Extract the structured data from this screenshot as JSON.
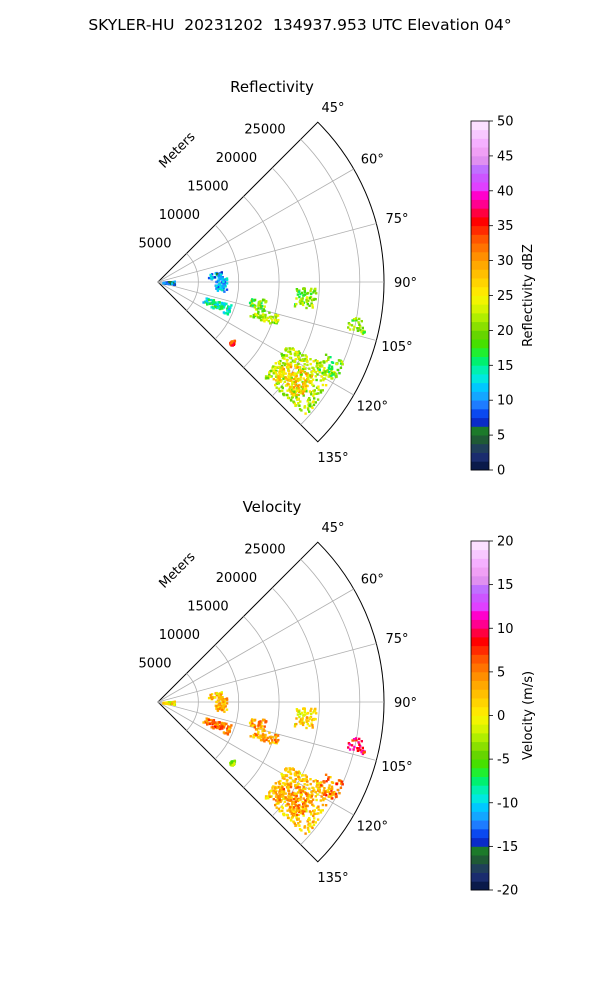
{
  "page": {
    "title": "SKYLER-HU  20231202  134937.953 UTC Elevation 04°"
  },
  "chart_data": [
    {
      "type": "heatmap",
      "title": "Reflectivity",
      "projection": "polar-sector",
      "theta_range_deg": [
        45,
        135
      ],
      "theta_ticks": [
        "45°",
        "60°",
        "75°",
        "90°",
        "105°",
        "120°",
        "135°"
      ],
      "r_range_m": [
        0,
        28000
      ],
      "r_ticks": [
        5000,
        10000,
        15000,
        20000,
        25000
      ],
      "r_axis_label": "Meters",
      "grid": true,
      "colorbar": {
        "label": "Reflectivity dBZ",
        "range": [
          0,
          50
        ],
        "ticks": [
          0,
          5,
          10,
          15,
          20,
          25,
          30,
          35,
          40,
          45,
          50
        ]
      },
      "clusters": [
        {
          "theta": [
            116,
            132
          ],
          "r": [
            17500,
            24500
          ],
          "value": 22
        },
        {
          "theta": [
            121,
            130
          ],
          "r": [
            18500,
            22500
          ],
          "value": 27
        },
        {
          "theta": [
            113,
            119
          ],
          "r": [
            22500,
            25000
          ],
          "value": 19
        },
        {
          "theta": [
            100,
            104
          ],
          "r": [
            24000,
            26200
          ],
          "value": 20
        },
        {
          "theta": [
            92,
            100
          ],
          "r": [
            17000,
            19500
          ],
          "value": 20
        },
        {
          "theta": [
            105,
            110
          ],
          "r": [
            12000,
            15500
          ],
          "value": 21
        },
        {
          "theta": [
            107,
            115
          ],
          "r": [
            6000,
            9500
          ],
          "value": 14
        },
        {
          "theta": [
            99,
            105
          ],
          "r": [
            11500,
            13500
          ],
          "value": 19
        },
        {
          "theta": [
            80,
            86
          ],
          "r": [
            6200,
            8000
          ],
          "value": 10
        },
        {
          "theta": [
            86,
            98
          ],
          "r": [
            7000,
            8500
          ],
          "value": 11
        },
        {
          "theta": [
            84,
            96
          ],
          "r": [
            500,
            2000
          ],
          "value": 8
        },
        {
          "theta": [
            127,
            131
          ],
          "r": [
            11500,
            12000
          ],
          "value": 33
        }
      ]
    },
    {
      "type": "heatmap",
      "title": "Velocity",
      "projection": "polar-sector",
      "theta_range_deg": [
        45,
        135
      ],
      "theta_ticks": [
        "45°",
        "60°",
        "75°",
        "90°",
        "105°",
        "120°",
        "135°"
      ],
      "r_range_m": [
        0,
        28000
      ],
      "r_ticks": [
        5000,
        10000,
        15000,
        20000,
        25000
      ],
      "r_axis_label": "Meters",
      "grid": true,
      "colorbar": {
        "label": "Velocity (m/s)",
        "range": [
          -20,
          20
        ],
        "ticks": [
          -20,
          -15,
          -10,
          -5,
          0,
          5,
          10,
          15,
          20
        ]
      },
      "clusters": [
        {
          "theta": [
            116,
            132
          ],
          "r": [
            17500,
            24500
          ],
          "value": 2
        },
        {
          "theta": [
            121,
            130
          ],
          "r": [
            18500,
            22500
          ],
          "value": 4
        },
        {
          "theta": [
            113,
            119
          ],
          "r": [
            22500,
            25000
          ],
          "value": 5
        },
        {
          "theta": [
            100,
            104
          ],
          "r": [
            24000,
            26200
          ],
          "value": 9
        },
        {
          "theta": [
            92,
            100
          ],
          "r": [
            17000,
            19500
          ],
          "value": 1
        },
        {
          "theta": [
            105,
            110
          ],
          "r": [
            12000,
            15500
          ],
          "value": 3
        },
        {
          "theta": [
            107,
            115
          ],
          "r": [
            6000,
            9500
          ],
          "value": 5
        },
        {
          "theta": [
            99,
            105
          ],
          "r": [
            11500,
            13500
          ],
          "value": 4
        },
        {
          "theta": [
            80,
            86
          ],
          "r": [
            6200,
            8000
          ],
          "value": 2
        },
        {
          "theta": [
            86,
            98
          ],
          "r": [
            7000,
            8500
          ],
          "value": 3
        },
        {
          "theta": [
            84,
            96
          ],
          "r": [
            500,
            2000
          ],
          "value": 0
        },
        {
          "theta": [
            127,
            131
          ],
          "r": [
            11500,
            12000
          ],
          "value": -4
        }
      ]
    }
  ]
}
